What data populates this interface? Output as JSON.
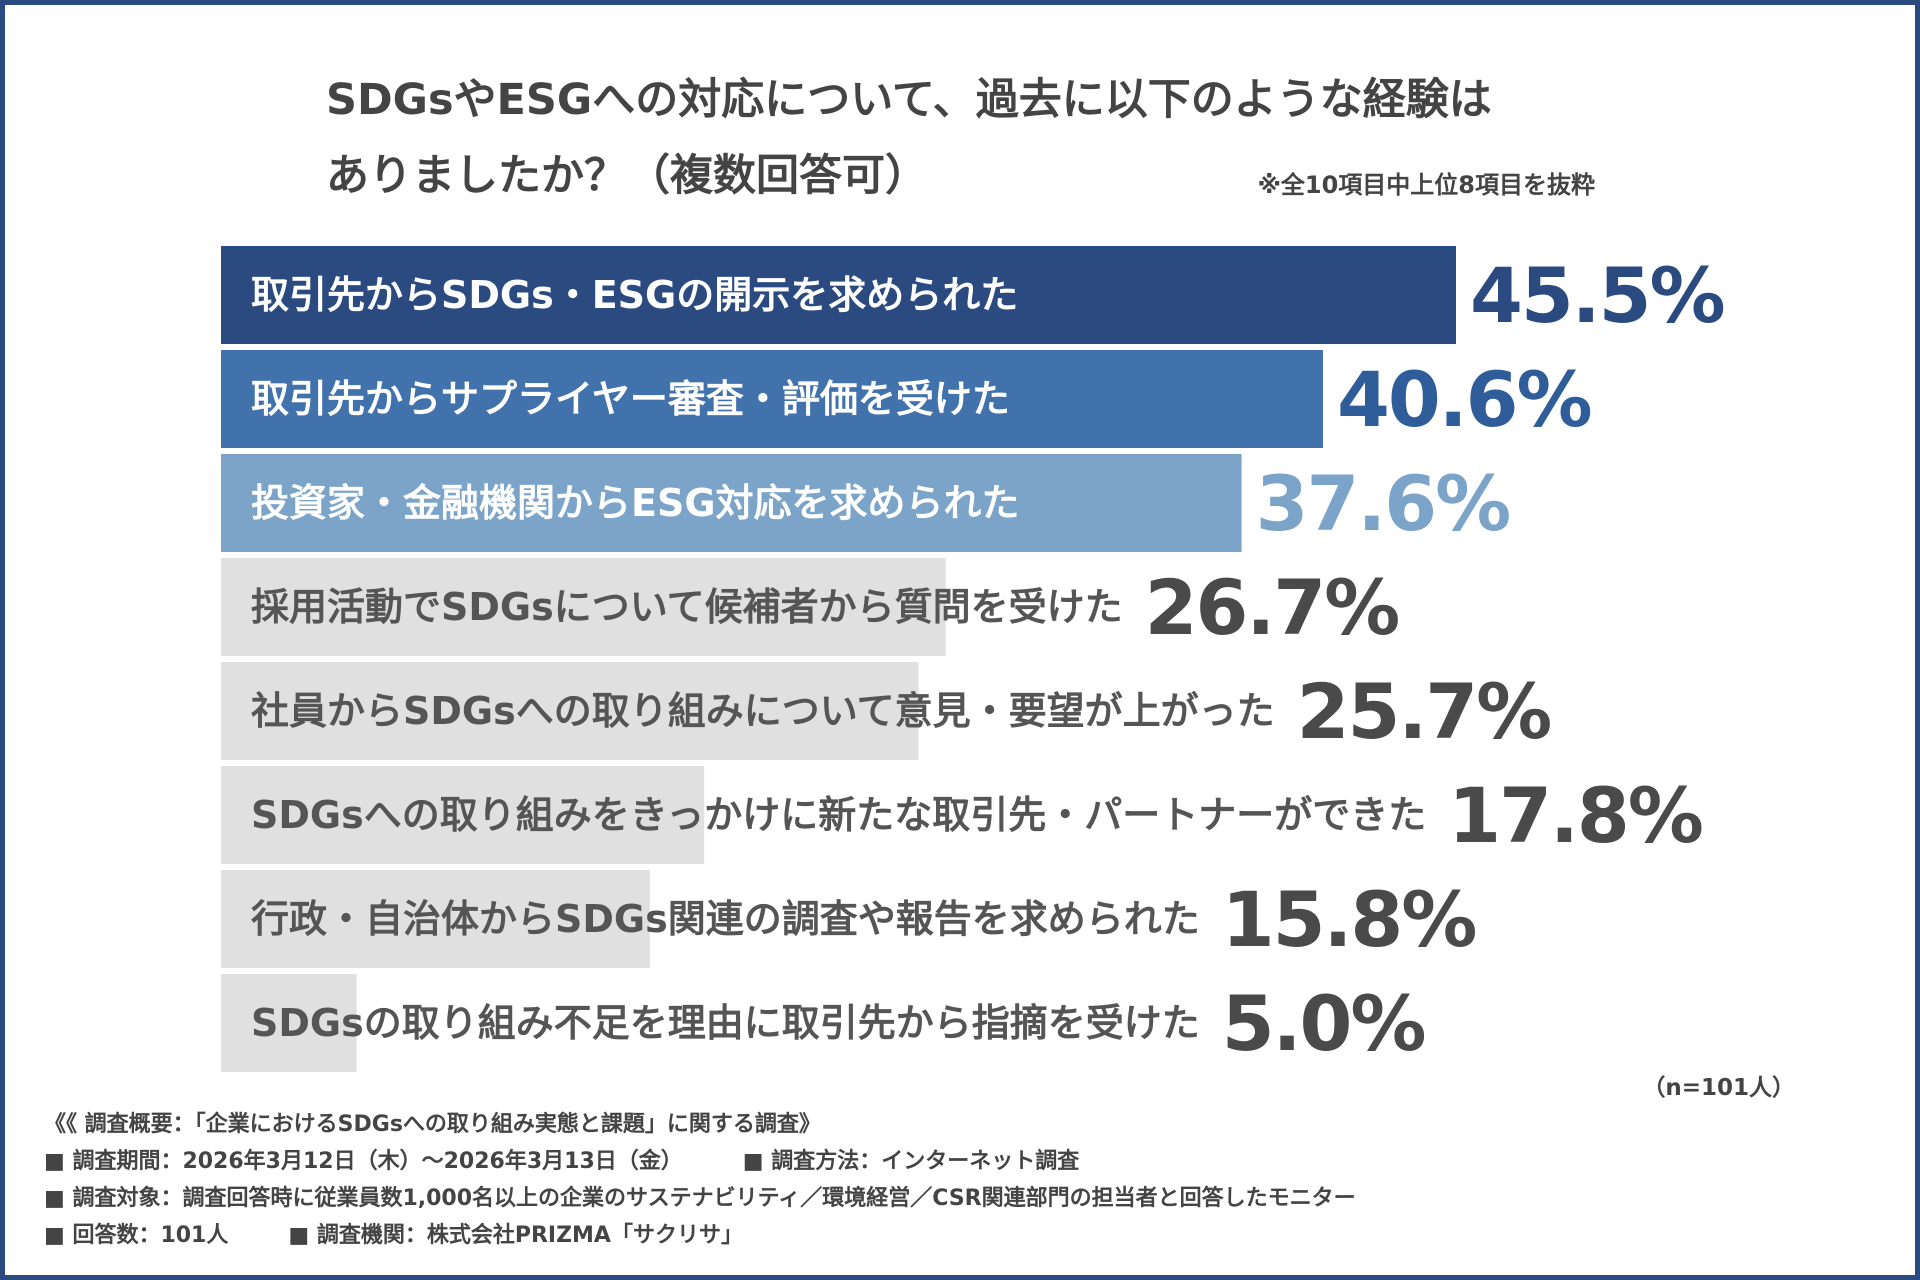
{
  "title": {
    "line1": "SDGsやESGへの対応について、過去に以下のような経験は",
    "line2": "ありましたか？（複数回答可）",
    "note": "※全10項目中上位8項目を抜粋"
  },
  "chart_data": {
    "type": "bar",
    "orientation": "horizontal",
    "categories": [
      "取引先からSDGs・ESGの開示を求められた",
      "取引先からサプライヤー審査・評価を受けた",
      "投資家・金融機関からESG対応を求められた",
      "採用活動でSDGsについて候補者から質問を受けた",
      "社員からSDGsへの取り組みについて意見・要望が上がった",
      "SDGsへの取り組みをきっかけに新たな取引先・パートナーができた",
      "行政・自治体からSDGs関連の調査や報告を求められた",
      "SDGsの取り組み不足を理由に取引先から指摘を受けた"
    ],
    "values": [
      45.5,
      40.6,
      37.6,
      26.7,
      25.7,
      17.8,
      15.8,
      5.0
    ],
    "value_labels": [
      "45.5%",
      "40.6%",
      "37.6%",
      "26.7%",
      "25.7%",
      "17.8%",
      "15.8%",
      "5.0%"
    ],
    "bar_colors": [
      "#2b4a80",
      "#4272ac",
      "#7ba4c8",
      "#e0e0e0",
      "#e0e0e0",
      "#e0e0e0",
      "#e0e0e0",
      "#e0e0e0"
    ],
    "label_colors": [
      "#ffffff",
      "#ffffff",
      "#ffffff",
      "#555555",
      "#555555",
      "#555555",
      "#555555",
      "#555555"
    ],
    "value_colors": [
      "#2b4a80",
      "#2f5d99",
      "#7ba4c8",
      "#4a4a4a",
      "#4a4a4a",
      "#4a4a4a",
      "#4a4a4a",
      "#4a4a4a"
    ],
    "xlim": [
      0,
      100
    ],
    "grid": false,
    "sample_size": "（n=101人）"
  },
  "footer": {
    "line1": "《《 調査概要：「企業におけるSDGsへの取り組み実態と課題」に関する調査》",
    "period": "■ 調査期間：2026年3月12日（木）～2026年3月13日（金）",
    "method": "■ 調査方法：インターネット調査",
    "target": "■ 調査対象：調査回答時に従業員数1,000名以上の企業のサステナビリティ／環境経営／CSR関連部門の担当者と回答したモニター",
    "responses": "■ 回答数：101人",
    "org": "■ 調査機関：株式会社PRIZMA「サクリサ」"
  }
}
